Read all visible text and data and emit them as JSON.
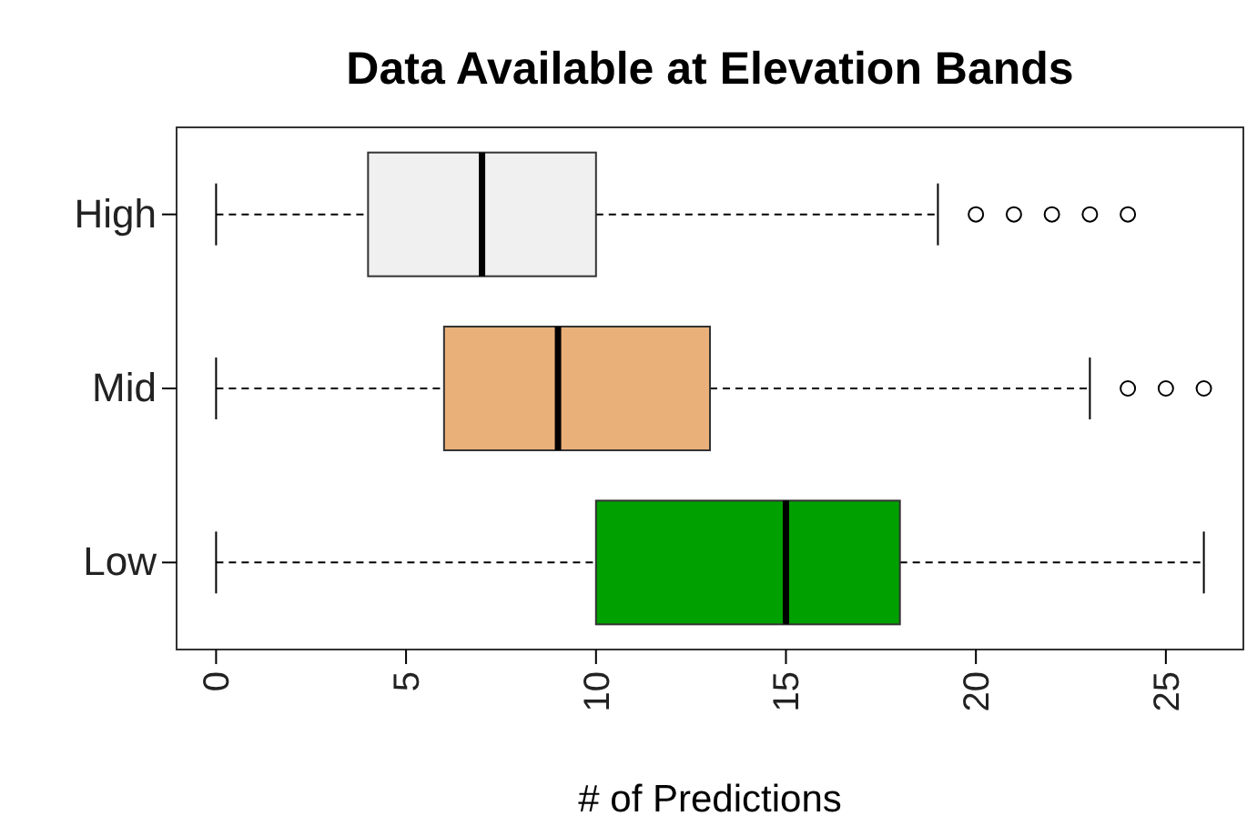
{
  "chart_data": {
    "type": "box",
    "title": "Data Available at Elevation Bands",
    "xlabel": "# of Predictions",
    "orientation": "horizontal",
    "categories": [
      "High",
      "Mid",
      "Low"
    ],
    "colors": [
      "#f0f0f0",
      "#eab07a",
      "#00a000"
    ],
    "boxes": [
      {
        "low": 0,
        "q1": 4,
        "median": 7,
        "q3": 10,
        "high": 19,
        "outliers": [
          20,
          21,
          22,
          23,
          24
        ]
      },
      {
        "low": 0,
        "q1": 6,
        "median": 9,
        "q3": 13,
        "high": 23,
        "outliers": [
          24,
          25,
          26
        ]
      },
      {
        "low": 0,
        "q1": 10,
        "median": 15,
        "q3": 18,
        "high": 26
      }
    ],
    "xlim": [
      -1.04,
      27.04
    ],
    "xticks": [
      0,
      5,
      10,
      15,
      20,
      25
    ],
    "marker": "circle"
  }
}
